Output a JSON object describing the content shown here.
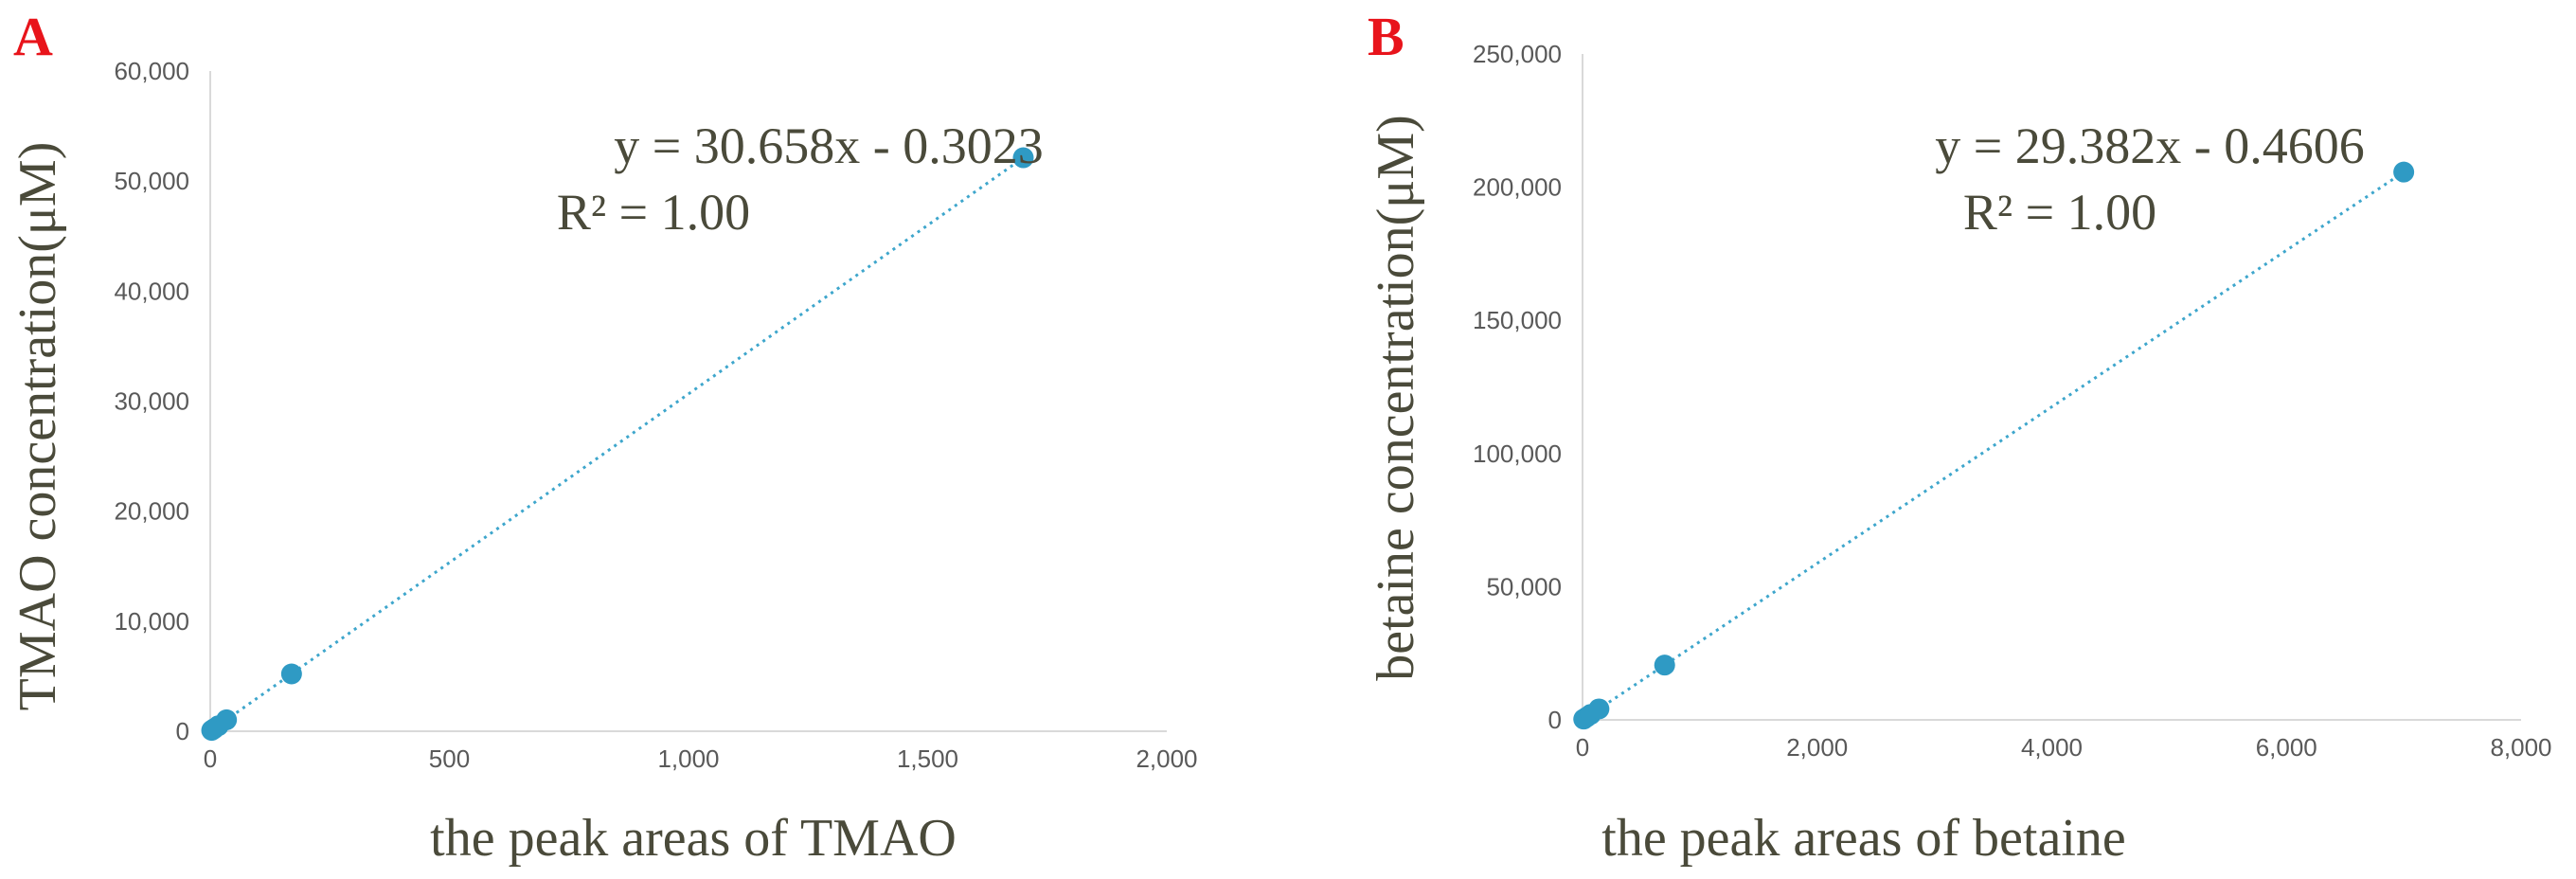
{
  "chart_data": [
    {
      "panel": "A",
      "type": "scatter",
      "xlabel": "the peak areas of TMAO",
      "ylabel": "TMAO concentration(μM)",
      "xlim": [
        0,
        2000
      ],
      "ylim": [
        0,
        60000
      ],
      "xticks": [
        0,
        500,
        1000,
        1500,
        2000
      ],
      "yticks": [
        0,
        10000,
        20000,
        30000,
        40000,
        50000,
        60000
      ],
      "xtick_labels": [
        "0",
        "500",
        "1,000",
        "1,500",
        "2,000"
      ],
      "ytick_labels": [
        "0",
        "10,000",
        "20,000",
        "30,000",
        "40,000",
        "50,000",
        "60,000"
      ],
      "trendline": {
        "slope": 30.658,
        "intercept": -0.3023,
        "equation": "y = 30.658x - 0.3023",
        "r2": "R² = 1.00"
      },
      "points": [
        {
          "x": 3,
          "y": 80
        },
        {
          "x": 8,
          "y": 230
        },
        {
          "x": 17,
          "y": 500
        },
        {
          "x": 34,
          "y": 1040
        },
        {
          "x": 170,
          "y": 5210
        },
        {
          "x": 1700,
          "y": 52120
        }
      ],
      "grid": false,
      "legend": "none",
      "colors": {
        "series": "#2f9ac4",
        "trendline": "#3ea6cc",
        "panel_letter": "#e8141b"
      }
    },
    {
      "panel": "B",
      "type": "scatter",
      "xlabel": "the peak areas of betaine",
      "ylabel": "betaine concentration(μM)",
      "xlim": [
        0,
        8000
      ],
      "ylim": [
        0,
        250000
      ],
      "xticks": [
        0,
        2000,
        4000,
        6000,
        8000
      ],
      "yticks": [
        0,
        50000,
        100000,
        150000,
        200000,
        250000
      ],
      "xtick_labels": [
        "0",
        "2,000",
        "4,000",
        "6,000",
        "8,000"
      ],
      "ytick_labels": [
        "0",
        "50,000",
        "100,000",
        "150,000",
        "200,000",
        "250,000"
      ],
      "trendline": {
        "slope": 29.382,
        "intercept": -0.4606,
        "equation": "y = 29.382x - 0.4606",
        "r2": "R² = 1.00"
      },
      "points": [
        {
          "x": 10,
          "y": 290
        },
        {
          "x": 35,
          "y": 1030
        },
        {
          "x": 70,
          "y": 2060
        },
        {
          "x": 140,
          "y": 4110
        },
        {
          "x": 700,
          "y": 20570
        },
        {
          "x": 7000,
          "y": 205670
        }
      ],
      "grid": false,
      "legend": "none",
      "colors": {
        "series": "#2f9ac4",
        "trendline": "#3ea6cc",
        "panel_letter": "#e8141b"
      }
    }
  ]
}
